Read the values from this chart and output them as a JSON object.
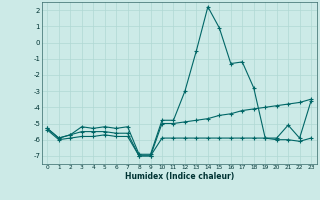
{
  "xlabel": "Humidex (Indice chaleur)",
  "bg_color": "#cceae7",
  "grid_color": "#b0d8d4",
  "line_color": "#006666",
  "xlim": [
    -0.5,
    23.5
  ],
  "ylim": [
    -7.5,
    2.5
  ],
  "yticks": [
    -7,
    -6,
    -5,
    -4,
    -3,
    -2,
    -1,
    0,
    1,
    2
  ],
  "xticks": [
    0,
    1,
    2,
    3,
    4,
    5,
    6,
    7,
    8,
    9,
    10,
    11,
    12,
    13,
    14,
    15,
    16,
    17,
    18,
    19,
    20,
    21,
    22,
    23
  ],
  "line1_x": [
    0,
    1,
    2,
    3,
    4,
    5,
    6,
    7,
    8,
    9,
    10,
    11,
    12,
    13,
    14,
    15,
    16,
    17,
    18,
    19,
    20,
    21,
    22,
    23
  ],
  "line1_y": [
    -5.3,
    -5.9,
    -5.7,
    -5.2,
    -5.3,
    -5.2,
    -5.3,
    -5.2,
    -6.9,
    -6.9,
    -4.8,
    -4.8,
    -3.0,
    -0.5,
    2.2,
    0.9,
    -1.3,
    -1.2,
    -2.8,
    -5.9,
    -5.9,
    -5.1,
    -5.9,
    -3.6
  ],
  "line2_x": [
    0,
    1,
    2,
    3,
    4,
    5,
    6,
    7,
    8,
    9,
    10,
    11,
    12,
    13,
    14,
    15,
    16,
    17,
    18,
    19,
    20,
    21,
    22,
    23
  ],
  "line2_y": [
    -5.3,
    -5.9,
    -5.7,
    -5.5,
    -5.5,
    -5.5,
    -5.6,
    -5.6,
    -7.0,
    -7.0,
    -5.0,
    -5.0,
    -4.9,
    -4.8,
    -4.7,
    -4.5,
    -4.4,
    -4.2,
    -4.1,
    -4.0,
    -3.9,
    -3.8,
    -3.7,
    -3.5
  ],
  "line3_x": [
    0,
    1,
    2,
    3,
    4,
    5,
    6,
    7,
    8,
    9,
    10,
    11,
    12,
    13,
    14,
    15,
    16,
    17,
    18,
    19,
    20,
    21,
    22,
    23
  ],
  "line3_y": [
    -5.4,
    -6.0,
    -5.9,
    -5.8,
    -5.8,
    -5.7,
    -5.8,
    -5.8,
    -7.0,
    -7.0,
    -5.9,
    -5.9,
    -5.9,
    -5.9,
    -5.9,
    -5.9,
    -5.9,
    -5.9,
    -5.9,
    -5.9,
    -6.0,
    -6.0,
    -6.1,
    -5.9
  ]
}
